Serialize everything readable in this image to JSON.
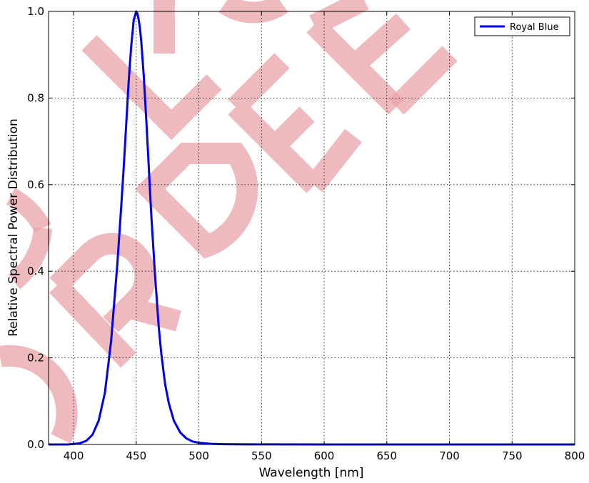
{
  "chart_data": {
    "type": "line",
    "title": "",
    "xlabel": "Wavelength [nm]",
    "ylabel": "Relative Spectral Power Distribution",
    "xlim": [
      380,
      800
    ],
    "ylim": [
      0.0,
      1.0
    ],
    "xticks": [
      400,
      450,
      500,
      550,
      600,
      650,
      700,
      750,
      800
    ],
    "xtick_labels": [
      "400",
      "450",
      "500",
      "550",
      "600",
      "650",
      "700",
      "750",
      "800"
    ],
    "yticks": [
      0.0,
      0.2,
      0.4,
      0.6,
      0.8,
      1.0
    ],
    "ytick_labels": [
      "0.0",
      "0.2",
      "0.4",
      "0.6",
      "0.8",
      "1.0"
    ],
    "grid": true,
    "legend_position": "top-right",
    "series": [
      {
        "name": "Royal Blue",
        "color": "#0000ee",
        "x": [
          380,
          395,
          400,
          405,
          410,
          415,
          420,
          425,
          430,
          435,
          438,
          440,
          442,
          444,
          446,
          448,
          450,
          451,
          452,
          453,
          454,
          456,
          458,
          460,
          462,
          465,
          468,
          470,
          473,
          476,
          480,
          485,
          490,
          495,
          500,
          510,
          520,
          540,
          600,
          700,
          800
        ],
        "y": [
          0.0,
          0.0,
          0.001,
          0.003,
          0.008,
          0.022,
          0.055,
          0.12,
          0.24,
          0.42,
          0.55,
          0.64,
          0.74,
          0.84,
          0.92,
          0.98,
          1.0,
          0.995,
          0.98,
          0.96,
          0.93,
          0.85,
          0.75,
          0.64,
          0.53,
          0.39,
          0.27,
          0.21,
          0.14,
          0.095,
          0.055,
          0.028,
          0.014,
          0.007,
          0.004,
          0.0015,
          0.0006,
          0.0001,
          0.0,
          0.0,
          0.0
        ]
      }
    ]
  }
}
